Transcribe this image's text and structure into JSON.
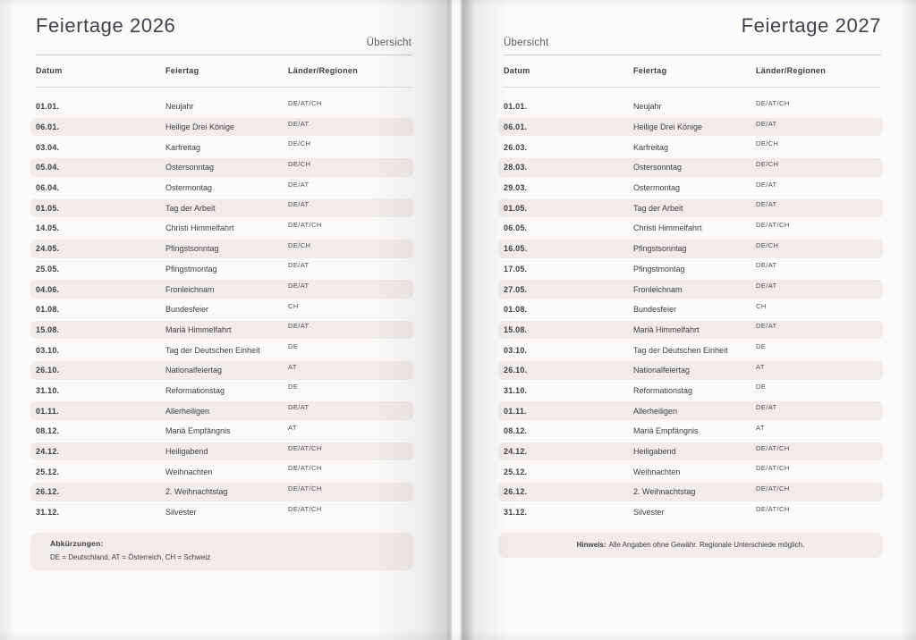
{
  "book": {
    "pages": [
      {
        "title": "Feiertage 2026",
        "nav_label": "Übersicht",
        "columns": [
          "Datum",
          "Feiertag",
          "Länder/Regionen"
        ],
        "rows": [
          {
            "date": "01.01.",
            "name": "Neujahr",
            "regions": "DE/AT/CH"
          },
          {
            "date": "06.01.",
            "name": "Heilige Drei Könige",
            "regions": "DE/AT"
          },
          {
            "date": "03.04.",
            "name": "Karfreitag",
            "regions": "DE/CH"
          },
          {
            "date": "05.04.",
            "name": "Ostersonntag",
            "regions": "DE/CH"
          },
          {
            "date": "06.04.",
            "name": "Ostermontag",
            "regions": "DE/AT"
          },
          {
            "date": "01.05.",
            "name": "Tag der Arbeit",
            "regions": "DE/AT"
          },
          {
            "date": "14.05.",
            "name": "Christi Himmelfahrt",
            "regions": "DE/AT/CH"
          },
          {
            "date": "24.05.",
            "name": "Pfingstsonntag",
            "regions": "DE/CH"
          },
          {
            "date": "25.05.",
            "name": "Pfingstmontag",
            "regions": "DE/AT"
          },
          {
            "date": "04.06.",
            "name": "Fronleichnam",
            "regions": "DE/AT"
          },
          {
            "date": "01.08.",
            "name": "Bundesfeier",
            "regions": "CH"
          },
          {
            "date": "15.08.",
            "name": "Mariä Himmelfahrt",
            "regions": "DE/AT"
          },
          {
            "date": "03.10.",
            "name": "Tag der Deutschen Einheit",
            "regions": "DE"
          },
          {
            "date": "26.10.",
            "name": "Nationalfeiertag",
            "regions": "AT"
          },
          {
            "date": "31.10.",
            "name": "Reformationstag",
            "regions": "DE"
          },
          {
            "date": "01.11.",
            "name": "Allerheiligen",
            "regions": "DE/AT"
          },
          {
            "date": "08.12.",
            "name": "Mariä Empfängnis",
            "regions": "AT"
          },
          {
            "date": "24.12.",
            "name": "Heiligabend",
            "regions": "DE/AT/CH"
          },
          {
            "date": "25.12.",
            "name": "Weihnachten",
            "regions": "DE/AT/CH"
          },
          {
            "date": "26.12.",
            "name": "2. Weihnachtstag",
            "regions": "DE/AT/CH"
          },
          {
            "date": "31.12.",
            "name": "Silvester",
            "regions": "DE/AT/CH"
          }
        ],
        "footer": {
          "label": "Abkürzungen:",
          "text": "DE = Deutschland, AT = Österreich, CH = Schweiz"
        }
      },
      {
        "title": "Feiertage 2027",
        "nav_label": "Übersicht",
        "columns": [
          "Datum",
          "Feiertag",
          "Länder/Regionen"
        ],
        "rows": [
          {
            "date": "01.01.",
            "name": "Neujahr",
            "regions": "DE/AT/CH"
          },
          {
            "date": "06.01.",
            "name": "Heilige Drei Könige",
            "regions": "DE/AT"
          },
          {
            "date": "26.03.",
            "name": "Karfreitag",
            "regions": "DE/CH"
          },
          {
            "date": "28.03.",
            "name": "Ostersonntag",
            "regions": "DE/CH"
          },
          {
            "date": "29.03.",
            "name": "Ostermontag",
            "regions": "DE/AT"
          },
          {
            "date": "01.05.",
            "name": "Tag der Arbeit",
            "regions": "DE/AT"
          },
          {
            "date": "06.05.",
            "name": "Christi Himmelfahrt",
            "regions": "DE/AT/CH"
          },
          {
            "date": "16.05.",
            "name": "Pfingstsonntag",
            "regions": "DE/CH"
          },
          {
            "date": "17.05.",
            "name": "Pfingstmontag",
            "regions": "DE/AT"
          },
          {
            "date": "27.05.",
            "name": "Fronleichnam",
            "regions": "DE/AT"
          },
          {
            "date": "01.08.",
            "name": "Bundesfeier",
            "regions": "CH"
          },
          {
            "date": "15.08.",
            "name": "Mariä Himmelfahrt",
            "regions": "DE/AT"
          },
          {
            "date": "03.10.",
            "name": "Tag der Deutschen Einheit",
            "regions": "DE"
          },
          {
            "date": "26.10.",
            "name": "Nationalfeiertag",
            "regions": "AT"
          },
          {
            "date": "31.10.",
            "name": "Reformationstag",
            "regions": "DE"
          },
          {
            "date": "01.11.",
            "name": "Allerheiligen",
            "regions": "DE/AT"
          },
          {
            "date": "08.12.",
            "name": "Mariä Empfängnis",
            "regions": "AT"
          },
          {
            "date": "24.12.",
            "name": "Heiligabend",
            "regions": "DE/AT/CH"
          },
          {
            "date": "25.12.",
            "name": "Weihnachten",
            "regions": "DE/AT/CH"
          },
          {
            "date": "26.12.",
            "name": "2. Weihnachtstag",
            "regions": "DE/AT/CH"
          },
          {
            "date": "31.12.",
            "name": "Silvester",
            "regions": "DE/AT/CH"
          }
        ],
        "footer": {
          "label": "Hinweis:",
          "text": "Alle Angaben ohne Gewähr. Regionale Unterschiede möglich."
        }
      }
    ]
  },
  "colors": {
    "page_background": "#fbfaf9",
    "row_band": "#f0ece9",
    "title_text": "#3e434b",
    "body_text": "#3b3e42",
    "divider": "#cbcbca"
  }
}
